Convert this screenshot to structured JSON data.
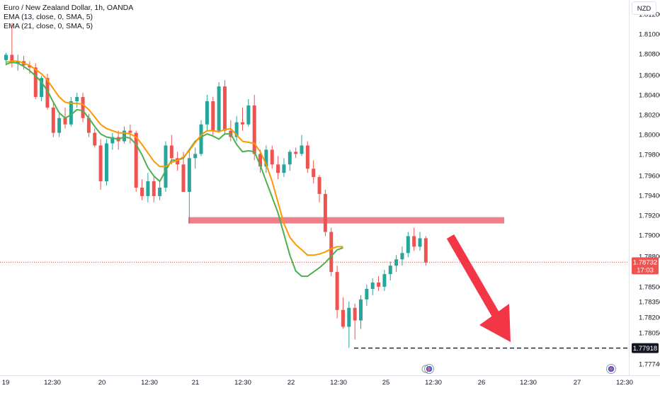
{
  "header": {
    "title": "Euro / New Zealand Dollar, 1h, OANDA",
    "indicators": [
      "EMA (13, close, 0, SMA, 5)",
      "EMA (21, close, 0, SMA, 5)"
    ]
  },
  "currency_badge": "NZD",
  "price_axis": {
    "ticks": [
      "1.81200",
      "1.81000",
      "1.80800",
      "1.80600",
      "1.80400",
      "1.80200",
      "1.80000",
      "1.79800",
      "1.79600",
      "1.79400",
      "1.79200",
      "1.79000",
      "1.78800",
      "1.78500",
      "1.78350",
      "1.78200",
      "1.78050",
      "1.77740"
    ]
  },
  "time_axis": {
    "ticks": [
      "19",
      "12:30",
      "20",
      "12:30",
      "21",
      "12:30",
      "22",
      "12:30",
      "25",
      "12:30",
      "26",
      "12:30",
      "27",
      "12:30"
    ]
  },
  "last_price": {
    "value": "1.78732",
    "countdown": "17:03"
  },
  "target_price": "1.77918",
  "colors": {
    "up": "#26a69a",
    "down": "#ef5350",
    "ema13": "#4caf50",
    "ema21": "#ff9800",
    "zone": "#f0717c",
    "arrow": "#f23645",
    "axis_text": "#131722"
  },
  "chart_data": {
    "type": "candlestick",
    "title": "Euro / New Zealand Dollar, 1h, OANDA",
    "xlabel": "",
    "ylabel": "",
    "ylim": [
      1.7766,
      1.8122
    ],
    "series": [
      {
        "name": "EMA (13, close, 0, SMA, 5)",
        "values": [
          1.8061,
          1.8063,
          1.8062,
          1.8059,
          1.8055,
          1.805,
          1.8044,
          1.8036,
          1.8025,
          1.8015,
          1.801,
          1.8013,
          1.8018,
          1.8017,
          1.801,
          1.8002,
          1.7995,
          1.7992,
          1.7991,
          1.799,
          1.7992,
          1.7991,
          1.7985,
          1.7975,
          1.7963,
          1.7955,
          1.795,
          1.796,
          1.797,
          1.797,
          1.7972,
          1.798,
          1.7988,
          1.7992,
          1.7995,
          1.7993,
          1.799,
          1.7995,
          1.7995,
          1.7985,
          1.7978,
          1.7979,
          1.7978,
          1.7965,
          1.795,
          1.7935,
          1.792,
          1.79,
          1.788,
          1.7865,
          1.786,
          1.786,
          1.7864,
          1.7868,
          1.7873,
          1.7879,
          1.7885,
          1.7887
        ]
      },
      {
        "name": "EMA (21, close, 0, SMA, 5)",
        "values": [
          1.8063,
          1.8064,
          1.8064,
          1.8062,
          1.806,
          1.8056,
          1.8052,
          1.8046,
          1.8038,
          1.803,
          1.8025,
          1.8024,
          1.8024,
          1.8023,
          1.8018,
          1.8011,
          1.8004,
          1.8,
          1.7998,
          1.7996,
          1.7996,
          1.7995,
          1.7992,
          1.7985,
          1.7977,
          1.7969,
          1.7964,
          1.7964,
          1.7968,
          1.797,
          1.7973,
          1.7979,
          1.7987,
          1.7994,
          1.7998,
          1.7998,
          1.7997,
          1.7999,
          1.8,
          1.7994,
          1.7988,
          1.7987,
          1.7986,
          1.7978,
          1.7966,
          1.795,
          1.793,
          1.791,
          1.7897,
          1.789,
          1.7885,
          1.788,
          1.788,
          1.7881,
          1.7883,
          1.7886,
          1.7888,
          1.7888
        ]
      }
    ],
    "ohlc": [
      [
        1.8065,
        1.8072,
        1.806,
        1.807
      ],
      [
        1.807,
        1.81,
        1.8058,
        1.8062
      ],
      [
        1.8062,
        1.807,
        1.8055,
        1.8064
      ],
      [
        1.8064,
        1.8069,
        1.8056,
        1.806
      ],
      [
        1.806,
        1.8064,
        1.8052,
        1.8058
      ],
      [
        1.8058,
        1.8062,
        1.8028,
        1.803
      ],
      [
        1.803,
        1.805,
        1.8026,
        1.8048
      ],
      [
        1.8048,
        1.8052,
        1.8018,
        1.802
      ],
      [
        1.802,
        1.8024,
        1.7992,
        1.7996
      ],
      [
        1.7996,
        1.8014,
        1.7992,
        1.801
      ],
      [
        1.801,
        1.802,
        1.8,
        1.8004
      ],
      [
        1.8004,
        1.803,
        1.8002,
        1.8026
      ],
      [
        1.8026,
        1.8034,
        1.802,
        1.803
      ],
      [
        1.803,
        1.8034,
        1.8006,
        1.801
      ],
      [
        1.801,
        1.8014,
        1.7992,
        1.7996
      ],
      [
        1.7996,
        1.8,
        1.7982,
        1.7984
      ],
      [
        1.7984,
        1.799,
        1.7942,
        1.795
      ],
      [
        1.795,
        1.799,
        1.7946,
        1.7986
      ],
      [
        1.7986,
        1.7996,
        1.798,
        1.7992
      ],
      [
        1.7992,
        1.7998,
        1.798,
        1.7988
      ],
      [
        1.7988,
        1.8002,
        1.7986,
        1.7998
      ],
      [
        1.7998,
        1.8004,
        1.7986,
        1.7996
      ],
      [
        1.7996,
        1.7998,
        1.794,
        1.7944
      ],
      [
        1.7944,
        1.7952,
        1.7932,
        1.7936
      ],
      [
        1.7936,
        1.7958,
        1.793,
        1.795
      ],
      [
        1.795,
        1.7954,
        1.793,
        1.7936
      ],
      [
        1.7936,
        1.795,
        1.7932,
        1.7944
      ],
      [
        1.7944,
        1.7988,
        1.794,
        1.7984
      ],
      [
        1.7984,
        1.7994,
        1.7966,
        1.7972
      ],
      [
        1.7972,
        1.7978,
        1.796,
        1.7966
      ],
      [
        1.7966,
        1.7978,
        1.794,
        1.794
      ],
      [
        1.794,
        1.798,
        1.791,
        1.7972
      ],
      [
        1.7972,
        1.7982,
        1.7962,
        1.7976
      ],
      [
        1.7976,
        1.8008,
        1.7974,
        1.8004
      ],
      [
        1.8004,
        1.8032,
        1.7998,
        1.8026
      ],
      [
        1.8026,
        1.803,
        1.7994,
        1.7998
      ],
      [
        1.7998,
        1.8044,
        1.7996,
        1.804
      ],
      [
        1.804,
        1.8046,
        1.7994,
        1.7998
      ],
      [
        1.7998,
        1.8008,
        1.7988,
        1.7992
      ],
      [
        1.7992,
        1.8012,
        1.7988,
        1.8006
      ],
      [
        1.8006,
        1.802,
        1.7998,
        1.8004
      ],
      [
        1.8004,
        1.8028,
        1.8002,
        1.8022
      ],
      [
        1.8022,
        1.8032,
        1.797,
        1.7976
      ],
      [
        1.7976,
        1.798,
        1.7958,
        1.7964
      ],
      [
        1.7964,
        1.7984,
        1.7958,
        1.798
      ],
      [
        1.798,
        1.7984,
        1.7962,
        1.7966
      ],
      [
        1.7966,
        1.7974,
        1.7952,
        1.7958
      ],
      [
        1.7958,
        1.7972,
        1.7954,
        1.7966
      ],
      [
        1.7966,
        1.798,
        1.796,
        1.7978
      ],
      [
        1.7978,
        1.7982,
        1.7972,
        1.7976
      ],
      [
        1.7976,
        1.7994,
        1.7974,
        1.7984
      ],
      [
        1.7984,
        1.7988,
        1.7958,
        1.7962
      ],
      [
        1.7962,
        1.797,
        1.7948,
        1.7954
      ],
      [
        1.7954,
        1.7956,
        1.793,
        1.7938
      ],
      [
        1.7938,
        1.7942,
        1.7898,
        1.7902
      ],
      [
        1.7902,
        1.7906,
        1.786,
        1.7864
      ],
      [
        1.7864,
        1.787,
        1.782,
        1.7828
      ],
      [
        1.7828,
        1.784,
        1.781,
        1.7812
      ],
      [
        1.7812,
        1.7836,
        1.7792,
        1.783
      ],
      [
        1.783,
        1.7834,
        1.78,
        1.7818
      ],
      [
        1.7818,
        1.7842,
        1.781,
        1.7838
      ],
      [
        1.7838,
        1.7852,
        1.7832,
        1.7848
      ],
      [
        1.7848,
        1.7858,
        1.7842,
        1.7854
      ],
      [
        1.7854,
        1.786,
        1.7846,
        1.785
      ],
      [
        1.785,
        1.7866,
        1.7846,
        1.7862
      ],
      [
        1.7862,
        1.7874,
        1.7856,
        1.787
      ],
      [
        1.787,
        1.788,
        1.7864,
        1.7876
      ],
      [
        1.7876,
        1.7888,
        1.787,
        1.7882
      ],
      [
        1.7882,
        1.7902,
        1.7878,
        1.7898
      ],
      [
        1.7898,
        1.7906,
        1.7884,
        1.7888
      ],
      [
        1.7888,
        1.7902,
        1.7884,
        1.7896
      ],
      [
        1.7896,
        1.7898,
        1.787,
        1.7873
      ]
    ],
    "resistance_zone": [
      1.791,
      1.7916
    ],
    "target_level": 1.77918,
    "last_price": 1.78732
  }
}
